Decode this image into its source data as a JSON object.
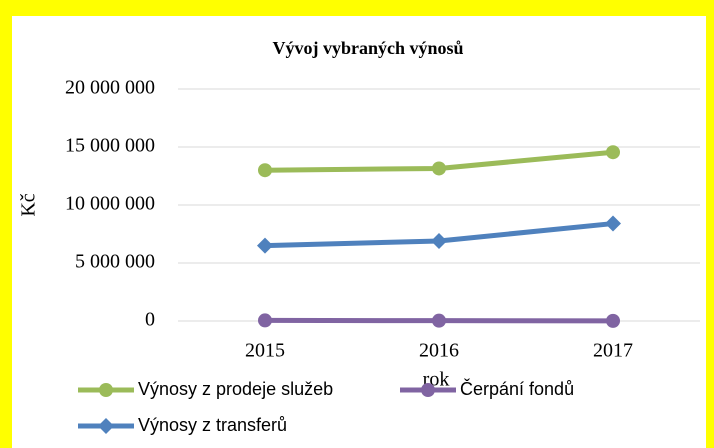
{
  "chart_data": {
    "type": "line",
    "title": "Vývoj vybraných výnosů",
    "x_label": "rok",
    "y_label": "Kč",
    "categories": [
      "2015",
      "2016",
      "2017"
    ],
    "series": [
      {
        "name": "Výnosy z prodeje služeb",
        "color": "#9bbb59",
        "marker": "circle",
        "values": [
          13000000,
          13150000,
          14550000
        ]
      },
      {
        "name": "Čerpání fondů",
        "color": "#8064a2",
        "marker": "circle",
        "values": [
          50000,
          30000,
          10000
        ]
      },
      {
        "name": "Výnosy z transferů",
        "color": "#4f81bd",
        "marker": "diamond",
        "values": [
          6500000,
          6900000,
          8400000
        ]
      }
    ],
    "ylim": [
      0,
      20000000
    ],
    "yticks": [
      0,
      {
        "value": 5000000,
        "label": "5 000 000"
      },
      {
        "value": 10000000,
        "label": "10 000 000"
      },
      {
        "value": 15000000,
        "label": "15 000 000"
      },
      {
        "value": 20000000,
        "label": "20 000 000"
      }
    ],
    "grid": true,
    "legend": "bottom"
  }
}
